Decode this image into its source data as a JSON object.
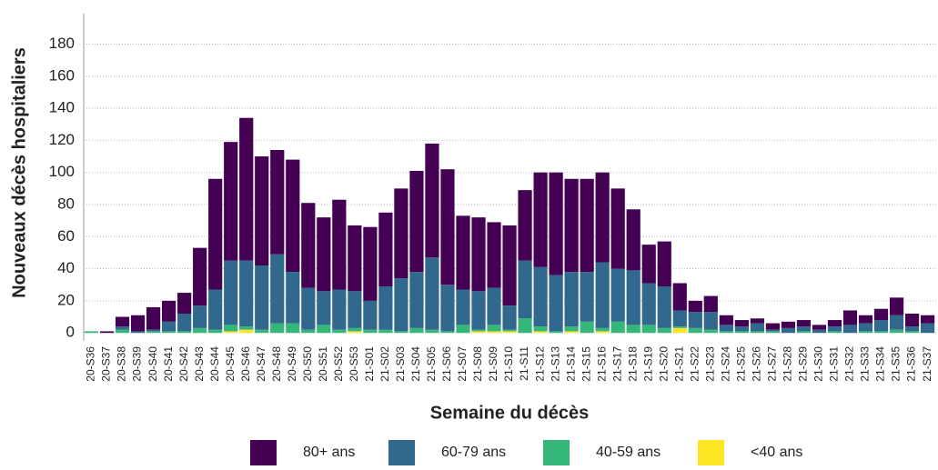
{
  "chart_data": {
    "type": "stacked_bar",
    "y_label": "Nouveaux décès hospitaliers",
    "x_label": "Semaine du décès",
    "categories": [
      "20-S36",
      "20-S37",
      "20-S38",
      "20-S39",
      "20-S40",
      "20-S41",
      "20-S42",
      "20-S43",
      "20-S44",
      "20-S45",
      "20-S46",
      "20-S47",
      "20-S48",
      "20-S49",
      "20-S50",
      "20-S51",
      "20-S52",
      "20-S53",
      "21-S01",
      "21-S02",
      "21-S03",
      "21-S04",
      "21-S05",
      "21-S06",
      "21-S07",
      "21-S08",
      "21-S09",
      "21-S10",
      "21-S11",
      "21-S12",
      "21-S13",
      "21-S14",
      "21-S15",
      "21-S16",
      "21-S17",
      "21-S18",
      "21-S19",
      "21-S20",
      "21-S21",
      "21-S22",
      "21-S23",
      "21-S24",
      "21-S25",
      "21-S26",
      "21-S27",
      "21-S28",
      "21-S29",
      "21-S30",
      "21-S31",
      "21-S32",
      "21-S33",
      "21-S34",
      "21-S35",
      "21-S36",
      "21-S37"
    ],
    "series": [
      {
        "name": "<40 ans",
        "color": "#fde725",
        "values": [
          0,
          0,
          0,
          0,
          0,
          0,
          0,
          0,
          0,
          1,
          2,
          0,
          0,
          0,
          0,
          0,
          0,
          1,
          0,
          0,
          0,
          0,
          0,
          0,
          0,
          1,
          1,
          1,
          0,
          1,
          0,
          1,
          0,
          1,
          0,
          0,
          0,
          0,
          3,
          0,
          0,
          0,
          0,
          0,
          0,
          0,
          0,
          0,
          0,
          0,
          0,
          0,
          0,
          0,
          0
        ]
      },
      {
        "name": "40-59 ans",
        "color": "#35b779",
        "values": [
          1,
          0,
          2,
          0,
          1,
          1,
          1,
          3,
          2,
          4,
          2,
          2,
          6,
          6,
          2,
          5,
          2,
          2,
          2,
          2,
          1,
          3,
          2,
          1,
          5,
          1,
          4,
          1,
          9,
          3,
          1,
          3,
          7,
          2,
          7,
          5,
          5,
          3,
          1,
          3,
          2,
          1,
          1,
          1,
          1,
          0,
          1,
          0,
          1,
          0,
          1,
          1,
          2,
          1,
          0
        ]
      },
      {
        "name": "60-79 ans",
        "color": "#31688e",
        "values": [
          0,
          0,
          2,
          1,
          1,
          6,
          11,
          14,
          25,
          40,
          41,
          40,
          43,
          32,
          26,
          21,
          25,
          23,
          18,
          27,
          33,
          35,
          45,
          29,
          22,
          24,
          23,
          15,
          36,
          37,
          35,
          34,
          31,
          41,
          33,
          34,
          26,
          26,
          10,
          10,
          11,
          4,
          3,
          5,
          1,
          3,
          3,
          2,
          3,
          5,
          5,
          7,
          9,
          3,
          6
        ]
      },
      {
        "name": "80+ ans",
        "color": "#440154",
        "values": [
          0,
          1,
          6,
          10,
          14,
          13,
          13,
          36,
          69,
          74,
          89,
          68,
          65,
          70,
          53,
          46,
          56,
          41,
          46,
          46,
          56,
          63,
          71,
          72,
          46,
          46,
          41,
          50,
          44,
          59,
          64,
          58,
          58,
          56,
          50,
          38,
          24,
          28,
          17,
          7,
          10,
          6,
          4,
          3,
          4,
          4,
          4,
          3,
          4,
          9,
          5,
          7,
          11,
          8,
          5
        ]
      }
    ],
    "ylim": [
      -5,
      199
    ],
    "yticks": [
      0,
      20,
      40,
      60,
      80,
      100,
      120,
      140,
      160,
      180
    ],
    "grid": true
  }
}
